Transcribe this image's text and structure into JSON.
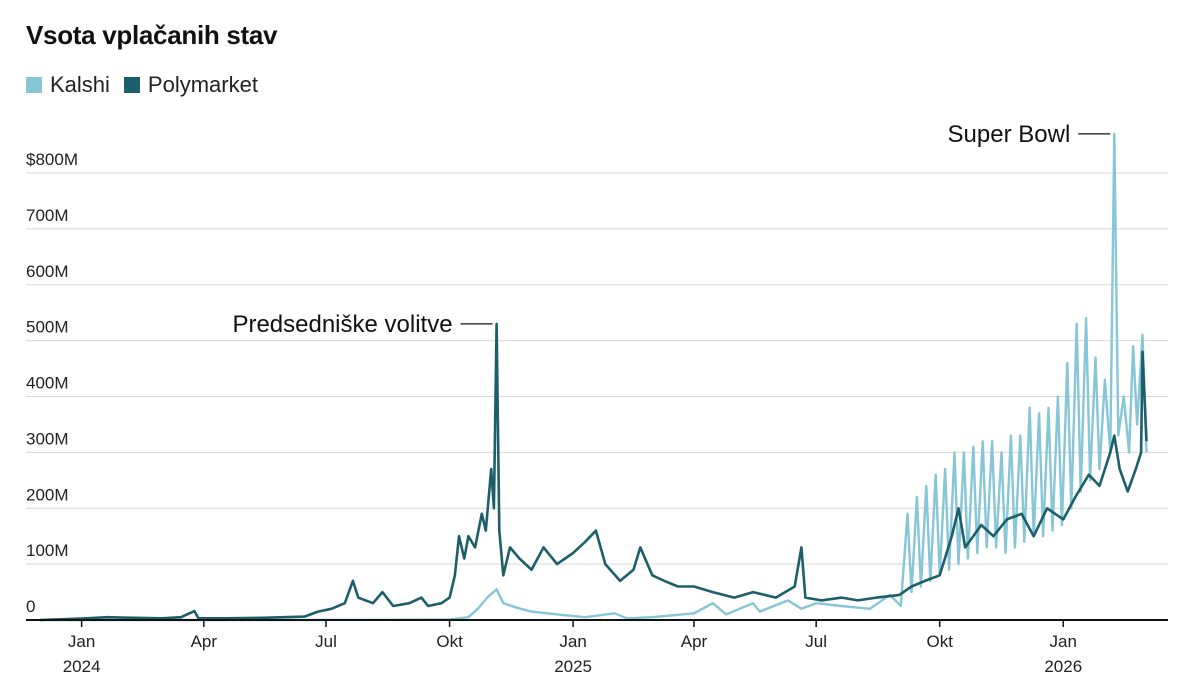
{
  "chart_data": {
    "type": "line",
    "title": "Vsota vplačanih stav",
    "xlabel": "",
    "ylabel": "",
    "ylim": [
      0,
      800000000
    ],
    "xlim": [
      "2023-12-01",
      "2026-03-20"
    ],
    "y_ticks": [
      {
        "value": 0,
        "label": "0"
      },
      {
        "value": 100000000,
        "label": "100M"
      },
      {
        "value": 200000000,
        "label": "200M"
      },
      {
        "value": 300000000,
        "label": "300M"
      },
      {
        "value": 400000000,
        "label": "400M"
      },
      {
        "value": 500000000,
        "label": "500M"
      },
      {
        "value": 600000000,
        "label": "600M"
      },
      {
        "value": 700000000,
        "label": "700M"
      },
      {
        "value": 800000000,
        "label": "$800M"
      }
    ],
    "x_ticks": [
      {
        "date": "2024-01-01",
        "label": "Jan",
        "year": "2024"
      },
      {
        "date": "2024-04-01",
        "label": "Apr",
        "year": ""
      },
      {
        "date": "2024-07-01",
        "label": "Jul",
        "year": ""
      },
      {
        "date": "2024-10-01",
        "label": "Okt",
        "year": ""
      },
      {
        "date": "2025-01-01",
        "label": "Jan",
        "year": "2025"
      },
      {
        "date": "2025-04-01",
        "label": "Apr",
        "year": ""
      },
      {
        "date": "2025-07-01",
        "label": "Jul",
        "year": ""
      },
      {
        "date": "2025-10-01",
        "label": "Okt",
        "year": ""
      },
      {
        "date": "2026-01-01",
        "label": "Jan",
        "year": "2026"
      }
    ],
    "grid": true,
    "legend_position": "top-left",
    "series": [
      {
        "name": "Kalshi",
        "color": "#86c6d6",
        "points": [
          [
            "2023-12-01",
            0
          ],
          [
            "2024-06-01",
            0
          ],
          [
            "2024-09-01",
            500000
          ],
          [
            "2024-10-01",
            1000000
          ],
          [
            "2024-10-15",
            5000000
          ],
          [
            "2024-10-22",
            20000000
          ],
          [
            "2024-10-29",
            40000000
          ],
          [
            "2024-11-05",
            55000000
          ],
          [
            "2024-11-10",
            30000000
          ],
          [
            "2024-11-20",
            22000000
          ],
          [
            "2024-12-01",
            15000000
          ],
          [
            "2024-12-20",
            10000000
          ],
          [
            "2025-01-10",
            5000000
          ],
          [
            "2025-02-01",
            12000000
          ],
          [
            "2025-02-10",
            3000000
          ],
          [
            "2025-03-01",
            5000000
          ],
          [
            "2025-04-01",
            12000000
          ],
          [
            "2025-04-15",
            30000000
          ],
          [
            "2025-04-25",
            10000000
          ],
          [
            "2025-05-15",
            30000000
          ],
          [
            "2025-05-20",
            15000000
          ],
          [
            "2025-06-10",
            35000000
          ],
          [
            "2025-06-20",
            20000000
          ],
          [
            "2025-07-01",
            30000000
          ],
          [
            "2025-07-20",
            25000000
          ],
          [
            "2025-08-10",
            20000000
          ],
          [
            "2025-08-25",
            45000000
          ],
          [
            "2025-09-02",
            25000000
          ],
          [
            "2025-09-07",
            190000000
          ],
          [
            "2025-09-10",
            50000000
          ],
          [
            "2025-09-14",
            220000000
          ],
          [
            "2025-09-17",
            60000000
          ],
          [
            "2025-09-21",
            240000000
          ],
          [
            "2025-09-24",
            70000000
          ],
          [
            "2025-09-28",
            260000000
          ],
          [
            "2025-10-01",
            80000000
          ],
          [
            "2025-10-05",
            270000000
          ],
          [
            "2025-10-08",
            90000000
          ],
          [
            "2025-10-12",
            300000000
          ],
          [
            "2025-10-15",
            100000000
          ],
          [
            "2025-10-19",
            300000000
          ],
          [
            "2025-10-22",
            110000000
          ],
          [
            "2025-10-26",
            310000000
          ],
          [
            "2025-10-29",
            120000000
          ],
          [
            "2025-11-02",
            320000000
          ],
          [
            "2025-11-05",
            130000000
          ],
          [
            "2025-11-09",
            320000000
          ],
          [
            "2025-11-12",
            130000000
          ],
          [
            "2025-11-16",
            300000000
          ],
          [
            "2025-11-19",
            120000000
          ],
          [
            "2025-11-23",
            330000000
          ],
          [
            "2025-11-26",
            130000000
          ],
          [
            "2025-11-30",
            330000000
          ],
          [
            "2025-12-03",
            140000000
          ],
          [
            "2025-12-07",
            380000000
          ],
          [
            "2025-12-10",
            150000000
          ],
          [
            "2025-12-14",
            370000000
          ],
          [
            "2025-12-17",
            150000000
          ],
          [
            "2025-12-21",
            380000000
          ],
          [
            "2025-12-24",
            160000000
          ],
          [
            "2025-12-28",
            400000000
          ],
          [
            "2025-12-31",
            170000000
          ],
          [
            "2026-01-04",
            460000000
          ],
          [
            "2026-01-07",
            200000000
          ],
          [
            "2026-01-11",
            530000000
          ],
          [
            "2026-01-14",
            230000000
          ],
          [
            "2026-01-18",
            540000000
          ],
          [
            "2026-01-21",
            250000000
          ],
          [
            "2026-01-25",
            470000000
          ],
          [
            "2026-01-28",
            270000000
          ],
          [
            "2026-02-01",
            430000000
          ],
          [
            "2026-02-05",
            300000000
          ],
          [
            "2026-02-08",
            870000000
          ],
          [
            "2026-02-11",
            330000000
          ],
          [
            "2026-02-15",
            400000000
          ],
          [
            "2026-02-19",
            300000000
          ],
          [
            "2026-02-22",
            490000000
          ],
          [
            "2026-02-25",
            350000000
          ],
          [
            "2026-03-01",
            510000000
          ],
          [
            "2026-03-04",
            300000000
          ]
        ]
      },
      {
        "name": "Polymarket",
        "color": "#1c5f6b",
        "points": [
          [
            "2023-12-01",
            0
          ],
          [
            "2024-01-05",
            3000000
          ],
          [
            "2024-01-20",
            5000000
          ],
          [
            "2024-02-10",
            4000000
          ],
          [
            "2024-03-01",
            3000000
          ],
          [
            "2024-03-15",
            5000000
          ],
          [
            "2024-03-25",
            16000000
          ],
          [
            "2024-03-28",
            3000000
          ],
          [
            "2024-04-15",
            3000000
          ],
          [
            "2024-05-15",
            4000000
          ],
          [
            "2024-06-15",
            6000000
          ],
          [
            "2024-06-25",
            15000000
          ],
          [
            "2024-07-05",
            20000000
          ],
          [
            "2024-07-15",
            30000000
          ],
          [
            "2024-07-21",
            70000000
          ],
          [
            "2024-07-25",
            40000000
          ],
          [
            "2024-08-05",
            30000000
          ],
          [
            "2024-08-12",
            50000000
          ],
          [
            "2024-08-20",
            25000000
          ],
          [
            "2024-09-01",
            30000000
          ],
          [
            "2024-09-10",
            40000000
          ],
          [
            "2024-09-15",
            25000000
          ],
          [
            "2024-09-25",
            30000000
          ],
          [
            "2024-10-01",
            40000000
          ],
          [
            "2024-10-05",
            80000000
          ],
          [
            "2024-10-08",
            150000000
          ],
          [
            "2024-10-12",
            110000000
          ],
          [
            "2024-10-15",
            150000000
          ],
          [
            "2024-10-20",
            130000000
          ],
          [
            "2024-10-25",
            190000000
          ],
          [
            "2024-10-28",
            160000000
          ],
          [
            "2024-11-01",
            270000000
          ],
          [
            "2024-11-03",
            200000000
          ],
          [
            "2024-11-05",
            530000000
          ],
          [
            "2024-11-07",
            160000000
          ],
          [
            "2024-11-10",
            80000000
          ],
          [
            "2024-11-15",
            130000000
          ],
          [
            "2024-11-22",
            110000000
          ],
          [
            "2024-12-01",
            90000000
          ],
          [
            "2024-12-10",
            130000000
          ],
          [
            "2024-12-20",
            100000000
          ],
          [
            "2025-01-01",
            120000000
          ],
          [
            "2025-01-10",
            140000000
          ],
          [
            "2025-01-18",
            160000000
          ],
          [
            "2025-01-25",
            100000000
          ],
          [
            "2025-02-05",
            70000000
          ],
          [
            "2025-02-15",
            90000000
          ],
          [
            "2025-02-20",
            130000000
          ],
          [
            "2025-03-01",
            80000000
          ],
          [
            "2025-03-10",
            70000000
          ],
          [
            "2025-03-20",
            60000000
          ],
          [
            "2025-04-01",
            60000000
          ],
          [
            "2025-04-15",
            50000000
          ],
          [
            "2025-05-01",
            40000000
          ],
          [
            "2025-05-15",
            50000000
          ],
          [
            "2025-06-01",
            40000000
          ],
          [
            "2025-06-15",
            60000000
          ],
          [
            "2025-06-20",
            130000000
          ],
          [
            "2025-06-23",
            40000000
          ],
          [
            "2025-07-05",
            35000000
          ],
          [
            "2025-07-20",
            40000000
          ],
          [
            "2025-08-01",
            35000000
          ],
          [
            "2025-08-15",
            40000000
          ],
          [
            "2025-09-01",
            45000000
          ],
          [
            "2025-09-10",
            60000000
          ],
          [
            "2025-09-20",
            70000000
          ],
          [
            "2025-10-01",
            80000000
          ],
          [
            "2025-10-10",
            150000000
          ],
          [
            "2025-10-15",
            200000000
          ],
          [
            "2025-10-20",
            130000000
          ],
          [
            "2025-11-01",
            170000000
          ],
          [
            "2025-11-10",
            150000000
          ],
          [
            "2025-11-20",
            180000000
          ],
          [
            "2025-12-01",
            190000000
          ],
          [
            "2025-12-10",
            150000000
          ],
          [
            "2025-12-20",
            200000000
          ],
          [
            "2026-01-01",
            180000000
          ],
          [
            "2026-01-10",
            220000000
          ],
          [
            "2026-01-20",
            260000000
          ],
          [
            "2026-01-28",
            240000000
          ],
          [
            "2026-02-05",
            300000000
          ],
          [
            "2026-02-08",
            330000000
          ],
          [
            "2026-02-12",
            270000000
          ],
          [
            "2026-02-18",
            230000000
          ],
          [
            "2026-02-24",
            270000000
          ],
          [
            "2026-02-28",
            300000000
          ],
          [
            "2026-03-01",
            480000000
          ],
          [
            "2026-03-04",
            320000000
          ]
        ]
      }
    ],
    "annotations": [
      {
        "text": "Predsedniške volitve",
        "date": "2024-11-05",
        "value": 530000000
      },
      {
        "text": "Super Bowl",
        "date": "2026-02-08",
        "value": 870000000
      }
    ]
  }
}
